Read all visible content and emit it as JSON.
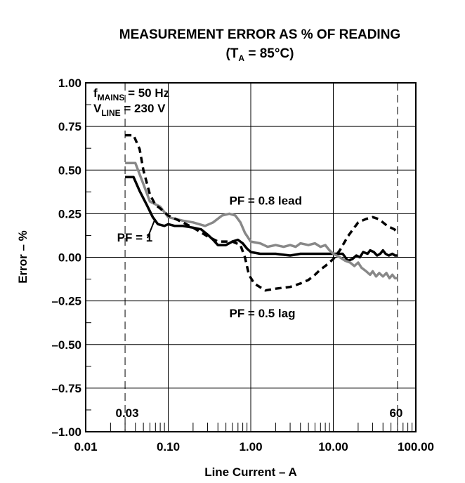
{
  "chart_data": {
    "type": "line",
    "title_line1": "MEASUREMENT ERROR AS % OF READING",
    "title_line2": {
      "prefix": "(T",
      "sub": "A",
      "suffix": " = 85°C)"
    },
    "xlabel": "Line Current – A",
    "ylabel": "Error – %",
    "x_scale": "log",
    "xlim": [
      0.01,
      100
    ],
    "ylim": [
      -1.0,
      1.0
    ],
    "x_ticks": [
      {
        "value": 0.01,
        "label": "0.01"
      },
      {
        "value": 0.1,
        "label": "0.10"
      },
      {
        "value": 1,
        "label": "1.00"
      },
      {
        "value": 10,
        "label": "10.00"
      },
      {
        "value": 100,
        "label": "100.00"
      }
    ],
    "y_ticks": [
      {
        "value": 1.0,
        "label": "1.00"
      },
      {
        "value": 0.75,
        "label": "0.75"
      },
      {
        "value": 0.5,
        "label": "0.50"
      },
      {
        "value": 0.25,
        "label": "0.25"
      },
      {
        "value": 0.0,
        "label": "0.00"
      },
      {
        "value": -0.25,
        "label": "–0.25"
      },
      {
        "value": -0.5,
        "label": "–0.50"
      },
      {
        "value": -0.75,
        "label": "–0.75"
      },
      {
        "value": -1.0,
        "label": "–1.00"
      }
    ],
    "grid": true,
    "conditions": [
      {
        "base": "f",
        "sub": "MAINS",
        "text": " = 50 Hz"
      },
      {
        "base": "V",
        "sub": "LINE",
        "text": " = 230 V"
      }
    ],
    "reference_lines": [
      {
        "x": 0.03,
        "label": "0.03"
      },
      {
        "x": 60,
        "label": "60"
      }
    ],
    "series": [
      {
        "name": "PF = 1",
        "style": "solid",
        "color": "#000000",
        "points": [
          [
            0.03,
            0.46
          ],
          [
            0.038,
            0.46
          ],
          [
            0.045,
            0.38
          ],
          [
            0.055,
            0.3
          ],
          [
            0.065,
            0.23
          ],
          [
            0.075,
            0.19
          ],
          [
            0.09,
            0.18
          ],
          [
            0.1,
            0.19
          ],
          [
            0.12,
            0.18
          ],
          [
            0.15,
            0.18
          ],
          [
            0.2,
            0.17
          ],
          [
            0.25,
            0.16
          ],
          [
            0.3,
            0.13
          ],
          [
            0.35,
            0.1
          ],
          [
            0.4,
            0.07
          ],
          [
            0.5,
            0.07
          ],
          [
            0.6,
            0.09
          ],
          [
            0.7,
            0.1
          ],
          [
            0.8,
            0.08
          ],
          [
            0.9,
            0.05
          ],
          [
            1,
            0.03
          ],
          [
            1.3,
            0.02
          ],
          [
            2,
            0.02
          ],
          [
            3,
            0.01
          ],
          [
            4,
            0.02
          ],
          [
            5,
            0.02
          ],
          [
            7,
            0.02
          ],
          [
            9,
            0.02
          ],
          [
            11,
            0.02
          ],
          [
            13,
            0.02
          ],
          [
            15,
            -0.02
          ],
          [
            17,
            -0.01
          ],
          [
            19,
            0.01
          ],
          [
            21,
            0.0
          ],
          [
            23,
            0.03
          ],
          [
            26,
            0.02
          ],
          [
            28,
            0.04
          ],
          [
            31,
            0.03
          ],
          [
            34,
            0.01
          ],
          [
            37,
            0.02
          ],
          [
            40,
            0.04
          ],
          [
            43,
            0.02
          ],
          [
            47,
            0.01
          ],
          [
            52,
            0.02
          ],
          [
            56,
            0.01
          ],
          [
            60,
            0.01
          ]
        ]
      },
      {
        "name": "PF = 0.8 lead",
        "style": "solid",
        "color": "#888888",
        "points": [
          [
            0.03,
            0.54
          ],
          [
            0.04,
            0.54
          ],
          [
            0.05,
            0.42
          ],
          [
            0.06,
            0.32
          ],
          [
            0.08,
            0.29
          ],
          [
            0.1,
            0.23
          ],
          [
            0.15,
            0.21
          ],
          [
            0.2,
            0.2
          ],
          [
            0.28,
            0.18
          ],
          [
            0.35,
            0.2
          ],
          [
            0.45,
            0.24
          ],
          [
            0.55,
            0.25
          ],
          [
            0.65,
            0.24
          ],
          [
            0.75,
            0.2
          ],
          [
            0.85,
            0.14
          ],
          [
            1,
            0.09
          ],
          [
            1.3,
            0.08
          ],
          [
            1.6,
            0.06
          ],
          [
            2,
            0.07
          ],
          [
            2.5,
            0.06
          ],
          [
            3,
            0.07
          ],
          [
            3.5,
            0.06
          ],
          [
            4,
            0.08
          ],
          [
            5,
            0.07
          ],
          [
            6,
            0.08
          ],
          [
            7,
            0.06
          ],
          [
            8,
            0.07
          ],
          [
            9,
            0.04
          ],
          [
            10,
            0.02
          ],
          [
            12,
            0.0
          ],
          [
            14,
            -0.02
          ],
          [
            16,
            -0.03
          ],
          [
            18,
            -0.05
          ],
          [
            20,
            -0.03
          ],
          [
            22,
            -0.06
          ],
          [
            25,
            -0.08
          ],
          [
            28,
            -0.1
          ],
          [
            30,
            -0.08
          ],
          [
            33,
            -0.11
          ],
          [
            36,
            -0.09
          ],
          [
            40,
            -0.11
          ],
          [
            44,
            -0.09
          ],
          [
            48,
            -0.12
          ],
          [
            52,
            -0.1
          ],
          [
            56,
            -0.12
          ],
          [
            60,
            -0.12
          ]
        ]
      },
      {
        "name": "PF = 0.5 lag",
        "style": "dashed",
        "color": "#000000",
        "points": [
          [
            0.03,
            0.7
          ],
          [
            0.038,
            0.7
          ],
          [
            0.045,
            0.62
          ],
          [
            0.05,
            0.5
          ],
          [
            0.06,
            0.36
          ],
          [
            0.07,
            0.3
          ],
          [
            0.08,
            0.28
          ],
          [
            0.1,
            0.24
          ],
          [
            0.15,
            0.2
          ],
          [
            0.2,
            0.17
          ],
          [
            0.3,
            0.12
          ],
          [
            0.4,
            0.09
          ],
          [
            0.6,
            0.09
          ],
          [
            0.75,
            0.07
          ],
          [
            0.85,
            0.0
          ],
          [
            0.95,
            -0.1
          ],
          [
            1.1,
            -0.15
          ],
          [
            1.5,
            -0.19
          ],
          [
            2,
            -0.18
          ],
          [
            3,
            -0.17
          ],
          [
            4,
            -0.15
          ],
          [
            5,
            -0.13
          ],
          [
            6,
            -0.1
          ],
          [
            7,
            -0.07
          ],
          [
            8,
            -0.05
          ],
          [
            10,
            -0.01
          ],
          [
            12,
            0.04
          ],
          [
            15,
            0.12
          ],
          [
            20,
            0.2
          ],
          [
            25,
            0.22
          ],
          [
            30,
            0.23
          ],
          [
            35,
            0.22
          ],
          [
            40,
            0.2
          ],
          [
            45,
            0.18
          ],
          [
            50,
            0.17
          ],
          [
            55,
            0.16
          ],
          [
            60,
            0.14
          ]
        ]
      }
    ],
    "annotations": [
      {
        "text": "PF = 0.8 lead",
        "x": 0.55,
        "y": 0.325,
        "anchor": "start"
      },
      {
        "text": "PF = 1",
        "x": 0.024,
        "y": 0.115,
        "anchor": "start"
      },
      {
        "text": "PF = 0.5 lag",
        "x": 0.55,
        "y": -0.32,
        "anchor": "start"
      }
    ]
  }
}
